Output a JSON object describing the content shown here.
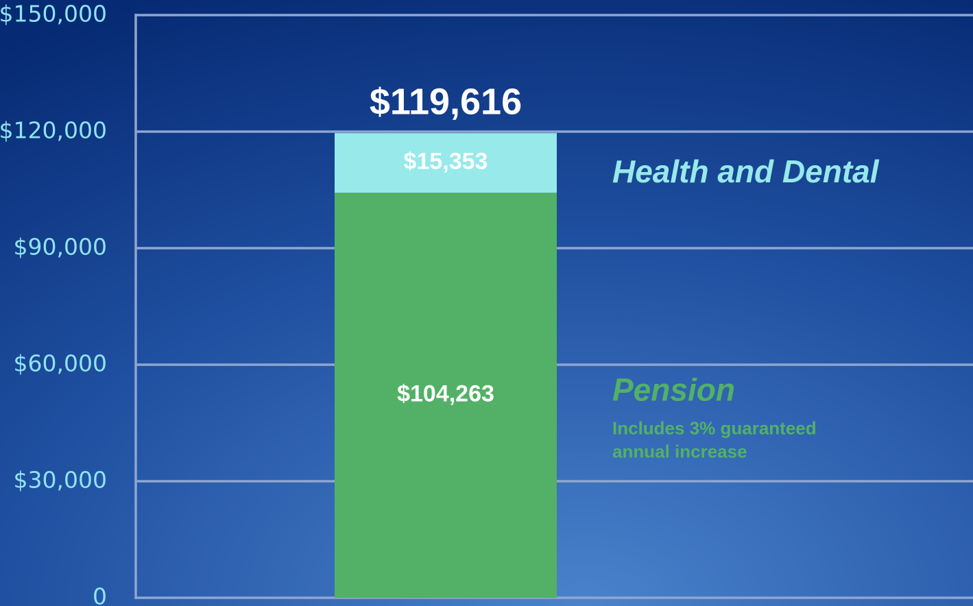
{
  "chart_data": {
    "type": "stacked_bar",
    "categories": [
      null
    ],
    "series": [
      {
        "name": "Pension",
        "color": "#52b166",
        "values": [
          104263
        ],
        "value_labels": [
          "$104,263"
        ],
        "note": [
          "Includes 3% guaranteed",
          "annual increase"
        ]
      },
      {
        "name": "Health and Dental",
        "color": "#97e9ea",
        "values": [
          15353
        ],
        "value_labels": [
          "$15,353"
        ]
      }
    ],
    "total_labels": [
      "$119,616"
    ],
    "ylim": [
      0,
      150000
    ],
    "yticks": [
      0,
      {
        "value": 30000,
        "label": "$30,000"
      },
      {
        "value": 60000,
        "label": "$60,000"
      },
      {
        "value": 90000,
        "label": "$90,000"
      },
      {
        "value": 120000,
        "label": "$120,000"
      },
      {
        "value": 150000,
        "label": "$150,000"
      }
    ],
    "grid": true
  }
}
